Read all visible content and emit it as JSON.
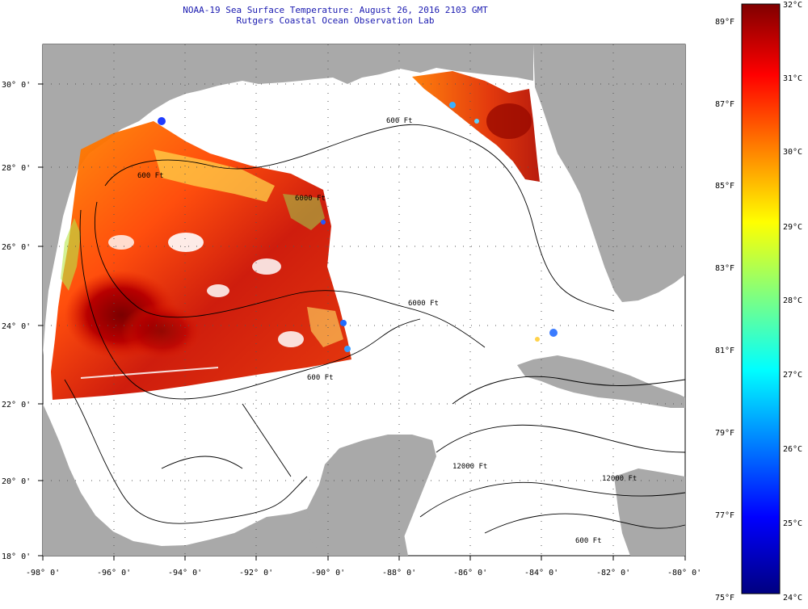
{
  "header": {
    "title": "NOAA-19 Sea Surface Temperature:  August 26, 2016 2103 GMT",
    "subtitle": "Rutgers Coastal Ocean Observation Lab"
  },
  "map": {
    "region": "Gulf of Mexico",
    "lon_range": [
      -98,
      -80
    ],
    "lat_range": [
      18,
      31
    ],
    "lon_ticks": [
      "-98° 0'",
      "-96° 0'",
      "-94° 0'",
      "-92° 0'",
      "-90° 0'",
      "-88° 0'",
      "-86° 0'",
      "-84° 0'",
      "-82° 0'",
      "-80° 0'"
    ],
    "lat_ticks": [
      "30° 0'",
      "28° 0'",
      "26° 0'",
      "24° 0'",
      "22° 0'",
      "20° 0'",
      "18° 0'"
    ],
    "contour_labels": [
      "600 Ft",
      "600 Ft",
      "6000 Ft",
      "6000 Ft",
      "600 Ft",
      "12000 Ft",
      "12000 Ft",
      "600 Ft"
    ],
    "colors": {
      "land": "#a9a9a9",
      "ocean_no_data": "#ffffff",
      "warm_max": "#8b0000",
      "cool_min": "#00008b"
    }
  },
  "colorbar": {
    "celsius_labels": [
      "32°C",
      "31°C",
      "30°C",
      "29°C",
      "28°C",
      "27°C",
      "26°C",
      "25°C",
      "24°C"
    ],
    "fahrenheit_labels": [
      "89°F",
      "87°F",
      "85°F",
      "83°F",
      "81°F",
      "79°F",
      "77°F",
      "75°F"
    ],
    "range_c": [
      24,
      32
    ],
    "range_f": [
      75,
      89.6
    ],
    "colormap": "jet"
  }
}
